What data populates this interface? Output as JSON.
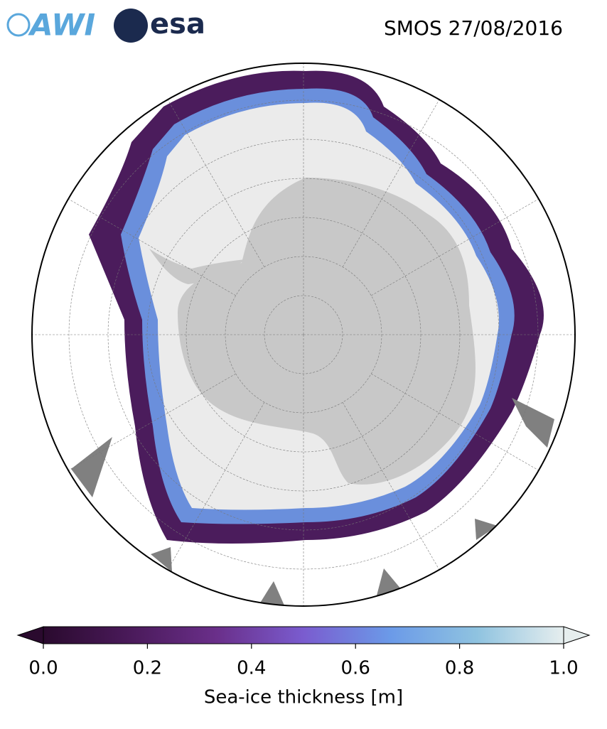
{
  "header": {
    "logos": [
      "AWI",
      "esa"
    ],
    "title": "SMOS 27/08/2016"
  },
  "colorbar": {
    "label": "Sea-ice thickness [m]",
    "lim": [
      0,
      1
    ],
    "ticks": [
      {
        "value": 0,
        "label": "0.0"
      },
      0.2,
      0.4,
      0.6,
      0.8,
      {
        "value": 1,
        "label": "1.0"
      }
    ],
    "colors": [
      "#2a0a2e",
      "#4a1a5a",
      "#6a2f8a",
      "#7a5ccf",
      "#6b9ae8",
      "#8fc3e0",
      "#e6eeee"
    ]
  }
}
